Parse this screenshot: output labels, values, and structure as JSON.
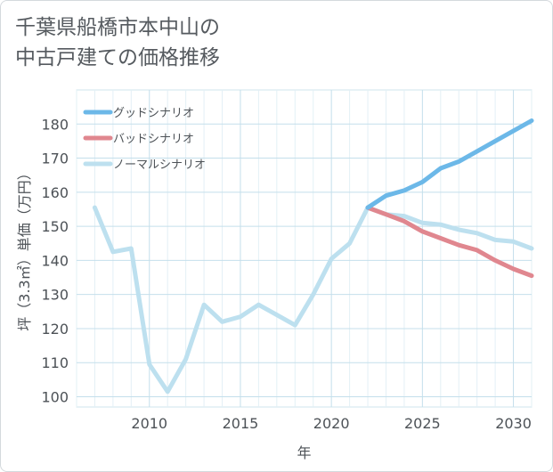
{
  "title_lines": [
    "千葉県船橋市本中山の",
    "中古戸建ての価格推移"
  ],
  "chart_data": {
    "type": "line",
    "title": "千葉県船橋市本中山の中古戸建ての価格推移",
    "xlabel": "年",
    "ylabel": "坪（3.3㎡）単価（万円）",
    "xlim": [
      2006,
      2031
    ],
    "ylim": [
      97,
      190
    ],
    "xticks": [
      2010,
      2015,
      2020,
      2025,
      2030
    ],
    "yticks": [
      100,
      110,
      120,
      130,
      140,
      150,
      160,
      170,
      180
    ],
    "grid": true,
    "legend_position": "top-left",
    "series": [
      {
        "name": "グッドシナリオ",
        "color": "#6cb8e8",
        "x": [
          2022,
          2023,
          2024,
          2025,
          2026,
          2027,
          2028,
          2029,
          2030,
          2031
        ],
        "y": [
          155.5,
          159,
          160.5,
          163,
          167,
          169,
          172,
          175,
          178,
          181
        ]
      },
      {
        "name": "バッドシナリオ",
        "color": "#e0878f",
        "x": [
          2022,
          2023,
          2024,
          2025,
          2026,
          2027,
          2028,
          2029,
          2030,
          2031
        ],
        "y": [
          155.5,
          153.5,
          151.5,
          148.5,
          146.5,
          144.5,
          143,
          140,
          137.5,
          135.5
        ]
      },
      {
        "name": "ノーマルシナリオ",
        "color": "#bde0ef",
        "x": [
          2007,
          2008,
          2009,
          2010,
          2011,
          2012,
          2013,
          2014,
          2015,
          2016,
          2017,
          2018,
          2019,
          2020,
          2021,
          2022,
          2023,
          2024,
          2025,
          2026,
          2027,
          2028,
          2029,
          2030,
          2031
        ],
        "y": [
          155.5,
          142.5,
          143.5,
          109.5,
          101.5,
          111,
          127,
          122,
          123.5,
          127,
          124,
          121,
          130,
          140.5,
          145,
          155.5,
          153.5,
          153,
          151,
          150.5,
          149,
          148,
          146,
          145.5,
          143.5
        ]
      }
    ]
  }
}
